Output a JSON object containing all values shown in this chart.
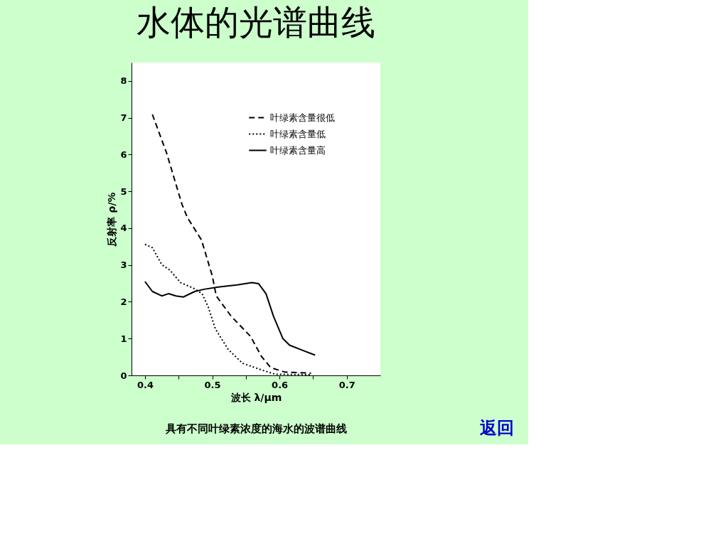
{
  "chart_data": {
    "type": "line",
    "title": "水体的光谱曲线",
    "xlabel": "波长 λ/μm",
    "ylabel": "反射率 ρ/%",
    "annotations": [
      "具有不同叶绿素浓度的海水的波谱曲线",
      "返回"
    ],
    "xlim": [
      0.38,
      0.75
    ],
    "ylim": [
      0,
      8.5
    ],
    "xticks": [
      0.4,
      {
        "value": 0.45,
        "label": null
      },
      0.5,
      {
        "value": 0.55,
        "label": null
      },
      0.6,
      {
        "value": 0.65,
        "label": null
      },
      0.7
    ],
    "yticks": [
      0,
      1,
      2,
      3,
      4,
      5,
      6,
      7,
      8
    ],
    "grid": false,
    "legend": "top right",
    "series": [
      {
        "name": "叶绿素含量很低",
        "color": "#000000",
        "line_style": "dashed",
        "x": [
          0.411,
          0.432,
          0.455,
          0.463,
          0.484,
          0.5,
          0.506,
          0.528,
          0.557,
          0.573,
          0.587,
          0.608,
          0.647
        ],
        "values": [
          7.09,
          6.05,
          4.65,
          4.29,
          3.68,
          2.71,
          2.16,
          1.61,
          1.06,
          0.52,
          0.21,
          0.09,
          0.06
        ]
      },
      {
        "name": "叶绿素含量低",
        "color": "#000000",
        "line_style": "dotted",
        "x": [
          0.4,
          0.411,
          0.425,
          0.437,
          0.453,
          0.472,
          0.485,
          0.494,
          0.505,
          0.524,
          0.545,
          0.573,
          0.594,
          0.647
        ],
        "values": [
          3.56,
          3.47,
          3.01,
          2.86,
          2.52,
          2.37,
          2.22,
          1.86,
          1.25,
          0.7,
          0.33,
          0.15,
          0.03,
          0.02
        ]
      },
      {
        "name": "叶绿素含量高",
        "color": "#000000",
        "line_style": "solid",
        "x": [
          0.4,
          0.411,
          0.425,
          0.435,
          0.446,
          0.457,
          0.474,
          0.488,
          0.509,
          0.537,
          0.559,
          0.569,
          0.58,
          0.591,
          0.605,
          0.615,
          0.636,
          0.653
        ],
        "values": [
          2.55,
          2.28,
          2.16,
          2.22,
          2.16,
          2.13,
          2.28,
          2.34,
          2.4,
          2.46,
          2.52,
          2.49,
          2.22,
          1.61,
          1.0,
          0.82,
          0.67,
          0.55
        ]
      }
    ]
  }
}
